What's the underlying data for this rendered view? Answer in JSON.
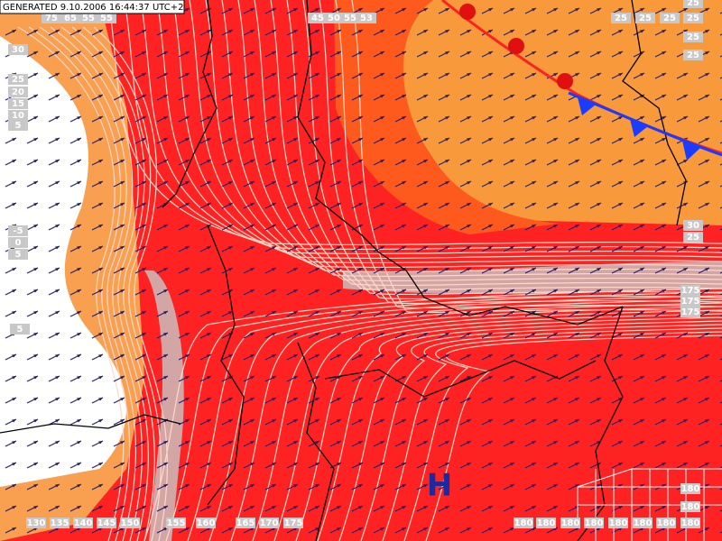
{
  "header": {
    "generated": "GENERATED 9.10.2006 16:44:37 UTC+2"
  },
  "pressure_center": "H",
  "contour_labels": [
    "75",
    "65",
    "55",
    "55",
    "45",
    "50",
    "55",
    "53",
    "25",
    "25",
    "25",
    "25",
    "25",
    "25",
    "25",
    "30",
    "25",
    "20",
    "15",
    "10",
    "5",
    "-5",
    "0",
    "5",
    "5",
    "30",
    "25",
    "175",
    "175",
    "175",
    "130",
    "135",
    "140",
    "145",
    "150",
    "155",
    "160",
    "165",
    "170",
    "175",
    "180",
    "180",
    "180",
    "180",
    "180",
    "180",
    "180",
    "180",
    "180",
    "180"
  ]
}
